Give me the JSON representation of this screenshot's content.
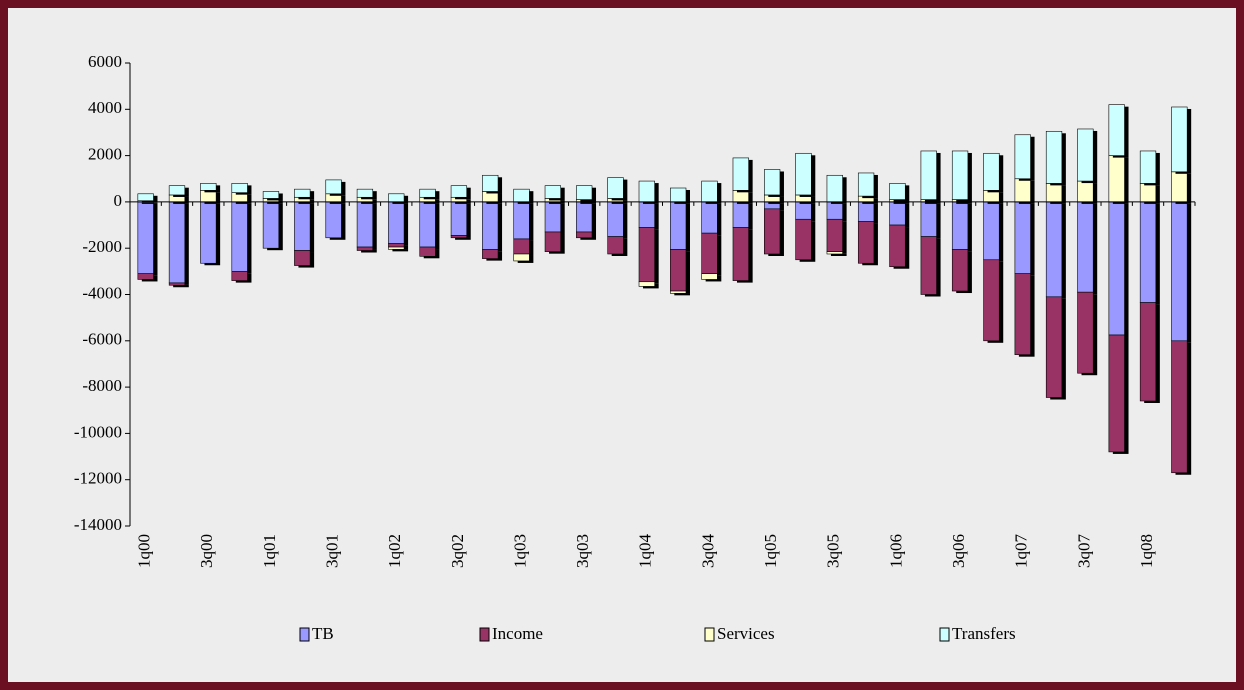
{
  "chart_data": {
    "type": "bar",
    "stacked": true,
    "categories": [
      "1q00",
      null,
      "3q00",
      null,
      "1q01",
      null,
      "3q01",
      null,
      "1q02",
      null,
      "3q02",
      null,
      "1q03",
      null,
      "3q03",
      null,
      "1q04",
      null,
      "3q04",
      null,
      "1q05",
      null,
      "3q05",
      null,
      "1q06",
      null,
      "3q06",
      null,
      "1q07",
      null,
      "3q07",
      null,
      "1q08",
      null
    ],
    "series": [
      {
        "name": "TB",
        "color": "#9999ff",
        "values": [
          -3100,
          -3500,
          -2650,
          -3000,
          -2000,
          -2100,
          -1550,
          -1950,
          -1800,
          -1950,
          -1450,
          -2050,
          -1600,
          -1300,
          -1300,
          -1500,
          -1100,
          -2050,
          -1350,
          -1100,
          -300,
          -750,
          -750,
          -850,
          -1000,
          -1500,
          -2050,
          -2500,
          -3100,
          -4100,
          -3900,
          -5750,
          -4350,
          -6000
        ]
      },
      {
        "name": "Income",
        "color": "#993366",
        "values": [
          -250,
          -100,
          0,
          -400,
          0,
          -650,
          0,
          -150,
          -150,
          -400,
          -100,
          -400,
          -650,
          -850,
          -250,
          -750,
          -2350,
          -1800,
          -1750,
          -2300,
          -1950,
          -1750,
          -1400,
          -1800,
          -1800,
          -2500,
          -1800,
          -3500,
          -3500,
          -4350,
          -3500,
          -5050,
          -4250,
          -5700
        ]
      },
      {
        "name": "Services",
        "color": "#ffffcc",
        "values": [
          50,
          300,
          500,
          400,
          150,
          200,
          350,
          200,
          -100,
          200,
          200,
          450,
          -300,
          150,
          100,
          150,
          -200,
          -100,
          -250,
          500,
          300,
          300,
          -100,
          250,
          100,
          100,
          100,
          500,
          1000,
          800,
          900,
          2000,
          800,
          1300
        ]
      },
      {
        "name": "Transfers",
        "color": "#ccffff",
        "values": [
          300,
          400,
          300,
          400,
          300,
          350,
          600,
          350,
          350,
          350,
          500,
          700,
          550,
          550,
          600,
          900,
          900,
          600,
          900,
          1400,
          1100,
          1800,
          1150,
          1000,
          700,
          2100,
          2100,
          1600,
          1900,
          2250,
          2250,
          2200,
          1400,
          2800
        ]
      }
    ],
    "ylim": [
      -14000,
      6000
    ],
    "yticks": [
      -14000,
      -12000,
      -10000,
      -8000,
      -6000,
      -4000,
      -2000,
      0,
      2000,
      4000,
      6000
    ]
  }
}
